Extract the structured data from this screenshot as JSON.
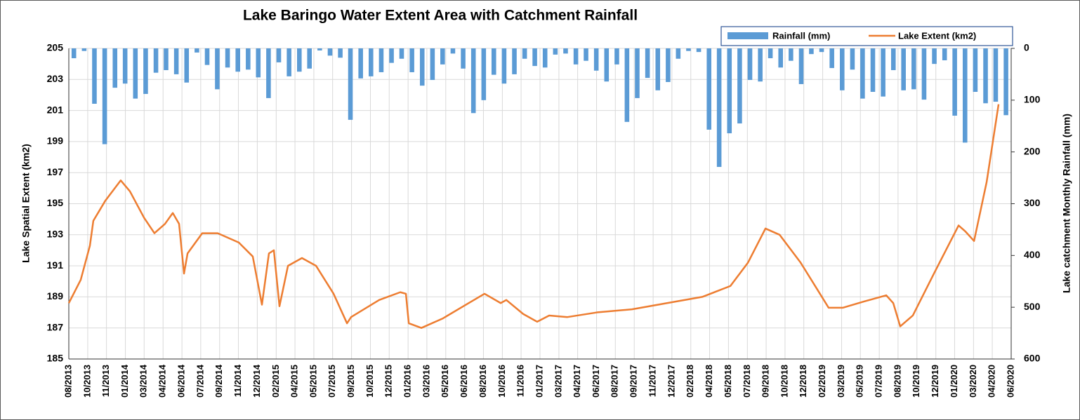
{
  "chart_data": {
    "type": "bar-line",
    "title": "Lake Baringo Water Extent Area with Catchment Rainfall",
    "y_label": "Lake Spatial Extent (km2)",
    "y2_label": "Lake catchment Monthly  Rainfall (mm)",
    "xlim": [
      2013.58,
      2020.46
    ],
    "xticks": [
      {
        "value": 2013.58,
        "label": "08/2013"
      },
      {
        "value": 2013.718,
        "label": "10/2013"
      },
      {
        "value": 2013.855,
        "label": "11/2013"
      },
      {
        "value": 2013.993,
        "label": "01/2014"
      },
      {
        "value": 2014.13,
        "label": "03/2014"
      },
      {
        "value": 2014.268,
        "label": "04/2014"
      },
      {
        "value": 2014.406,
        "label": "06/2014"
      },
      {
        "value": 2014.543,
        "label": "07/2014"
      },
      {
        "value": 2014.681,
        "label": "09/2014"
      },
      {
        "value": 2014.818,
        "label": "11/2014"
      },
      {
        "value": 2014.956,
        "label": "12/2014"
      },
      {
        "value": 2015.094,
        "label": "02/2015"
      },
      {
        "value": 2015.231,
        "label": "04/2015"
      },
      {
        "value": 2015.369,
        "label": "05/2015"
      },
      {
        "value": 2015.506,
        "label": "07/2015"
      },
      {
        "value": 2015.644,
        "label": "09/2015"
      },
      {
        "value": 2015.782,
        "label": "10/2015"
      },
      {
        "value": 2015.919,
        "label": "12/2015"
      },
      {
        "value": 2016.057,
        "label": "01/2016"
      },
      {
        "value": 2016.194,
        "label": "03/2016"
      },
      {
        "value": 2016.332,
        "label": "05/2016"
      },
      {
        "value": 2016.47,
        "label": "06/2016"
      },
      {
        "value": 2016.607,
        "label": "08/2016"
      },
      {
        "value": 2016.745,
        "label": "10/2016"
      },
      {
        "value": 2016.882,
        "label": "11/2016"
      },
      {
        "value": 2017.02,
        "label": "01/2017"
      },
      {
        "value": 2017.158,
        "label": "03/2017"
      },
      {
        "value": 2017.295,
        "label": "04/2017"
      },
      {
        "value": 2017.433,
        "label": "06/2017"
      },
      {
        "value": 2017.57,
        "label": "08/2017"
      },
      {
        "value": 2017.708,
        "label": "09/2017"
      },
      {
        "value": 2017.846,
        "label": "11/2017"
      },
      {
        "value": 2017.983,
        "label": "12/2017"
      },
      {
        "value": 2018.121,
        "label": "02/2018"
      },
      {
        "value": 2018.258,
        "label": "04/2018"
      },
      {
        "value": 2018.396,
        "label": "05/2018"
      },
      {
        "value": 2018.534,
        "label": "07/2018"
      },
      {
        "value": 2018.671,
        "label": "09/2018"
      },
      {
        "value": 2018.809,
        "label": "10/2018"
      },
      {
        "value": 2018.946,
        "label": "12/2018"
      },
      {
        "value": 2019.084,
        "label": "02/2019"
      },
      {
        "value": 2019.222,
        "label": "03/2019"
      },
      {
        "value": 2019.359,
        "label": "05/2019"
      },
      {
        "value": 2019.497,
        "label": "07/2019"
      },
      {
        "value": 2019.634,
        "label": "08/2019"
      },
      {
        "value": 2019.772,
        "label": "10/2019"
      },
      {
        "value": 2019.91,
        "label": "12/2019"
      },
      {
        "value": 2020.047,
        "label": "01/2020"
      },
      {
        "value": 2020.185,
        "label": "03/2020"
      },
      {
        "value": 2020.322,
        "label": "04/2020"
      },
      {
        "value": 2020.46,
        "label": "06/2020"
      }
    ],
    "ylim": [
      185,
      205
    ],
    "yticks": [
      185,
      187,
      189,
      191,
      193,
      195,
      197,
      199,
      201,
      203,
      205
    ],
    "y2lim": [
      600,
      0
    ],
    "y2ticks": [
      0,
      100,
      200,
      300,
      400,
      500,
      600
    ],
    "grid": true,
    "legend": "top-right",
    "series": [
      {
        "name": "Rainfall (mm)",
        "type": "bar",
        "axis": "y2",
        "color": "#5b9bd5",
        "x": [
          2013.617,
          2013.692,
          2013.767,
          2013.842,
          2013.917,
          2013.991,
          2014.066,
          2014.141,
          2014.216,
          2014.29,
          2014.365,
          2014.44,
          2014.515,
          2014.59,
          2014.664,
          2014.739,
          2014.814,
          2014.889,
          2014.963,
          2015.038,
          2015.113,
          2015.188,
          2015.263,
          2015.337,
          2015.412,
          2015.487,
          2015.562,
          2015.636,
          2015.711,
          2015.786,
          2015.861,
          2015.936,
          2016.01,
          2016.085,
          2016.16,
          2016.235,
          2016.309,
          2016.384,
          2016.459,
          2016.534,
          2016.609,
          2016.683,
          2016.758,
          2016.833,
          2016.908,
          2016.982,
          2017.057,
          2017.132,
          2017.207,
          2017.282,
          2017.356,
          2017.431,
          2017.506,
          2017.581,
          2017.655,
          2017.73,
          2017.805,
          2017.88,
          2017.955,
          2018.029,
          2018.104,
          2018.179,
          2018.254,
          2018.328,
          2018.403,
          2018.478,
          2018.553,
          2018.628,
          2018.702,
          2018.777,
          2018.852,
          2018.927,
          2019.001,
          2019.076,
          2019.151,
          2019.226,
          2019.301,
          2019.375,
          2019.45,
          2019.525,
          2019.6,
          2019.674,
          2019.749,
          2019.824,
          2019.899,
          2019.974,
          2020.048,
          2020.123,
          2020.198,
          2020.273,
          2020.347,
          2020.422
        ],
        "values": [
          19,
          5,
          107,
          185,
          76,
          68,
          97,
          88,
          47,
          42,
          50,
          66,
          8,
          32,
          79,
          37,
          45,
          41,
          56,
          96,
          27,
          54,
          45,
          39,
          4,
          14,
          18,
          138,
          58,
          54,
          46,
          28,
          20,
          46,
          72,
          61,
          31,
          10,
          39,
          125,
          100,
          51,
          68,
          50,
          20,
          34,
          37,
          12,
          10,
          31,
          24,
          43,
          64,
          31,
          142,
          96,
          57,
          81,
          65,
          20,
          5,
          7,
          157,
          229,
          164,
          145,
          61,
          64,
          19,
          37,
          24,
          69,
          11,
          7,
          38,
          81,
          41,
          97,
          84,
          93,
          42,
          81,
          79,
          99,
          30,
          23,
          130,
          182,
          84,
          106,
          103,
          129
        ]
      },
      {
        "name": "Lake Extent (km2)",
        "type": "line",
        "axis": "y",
        "color": "#ed7d31",
        "x": [
          2013.58,
          2013.667,
          2013.734,
          2013.759,
          2013.847,
          2013.959,
          2014.026,
          2014.129,
          2014.205,
          2014.282,
          2014.339,
          2014.385,
          2014.421,
          2014.447,
          2014.554,
          2014.667,
          2014.821,
          2014.923,
          2014.99,
          2015.041,
          2015.077,
          2015.118,
          2015.18,
          2015.282,
          2015.385,
          2015.513,
          2015.611,
          2015.641,
          2015.846,
          2016.0,
          2016.041,
          2016.062,
          2016.154,
          2016.308,
          2016.461,
          2016.615,
          2016.733,
          2016.774,
          2016.897,
          2016.999,
          2017.087,
          2017.22,
          2017.436,
          2017.692,
          2017.948,
          2018.205,
          2018.41,
          2018.538,
          2018.666,
          2018.769,
          2018.923,
          2019.05,
          2019.127,
          2019.23,
          2019.384,
          2019.548,
          2019.599,
          2019.65,
          2019.742,
          2019.896,
          2020.076,
          2020.127,
          2020.189,
          2020.281,
          2020.368
        ],
        "values": [
          188.6,
          190.1,
          192.3,
          193.9,
          195.2,
          196.5,
          195.8,
          194.1,
          193.1,
          193.7,
          194.4,
          193.7,
          190.5,
          191.8,
          193.1,
          193.1,
          192.5,
          191.6,
          188.5,
          191.8,
          192.0,
          188.4,
          191.0,
          191.5,
          191.0,
          189.2,
          187.3,
          187.7,
          188.8,
          189.3,
          189.2,
          187.3,
          187.0,
          187.6,
          188.4,
          189.2,
          188.6,
          188.8,
          187.9,
          187.4,
          187.8,
          187.7,
          188.0,
          188.2,
          188.6,
          189.0,
          189.7,
          191.2,
          193.4,
          193.0,
          191.2,
          189.4,
          188.3,
          188.3,
          188.7,
          189.1,
          188.6,
          187.1,
          187.8,
          190.5,
          193.6,
          193.2,
          192.6,
          196.4,
          201.4
        ]
      }
    ]
  }
}
